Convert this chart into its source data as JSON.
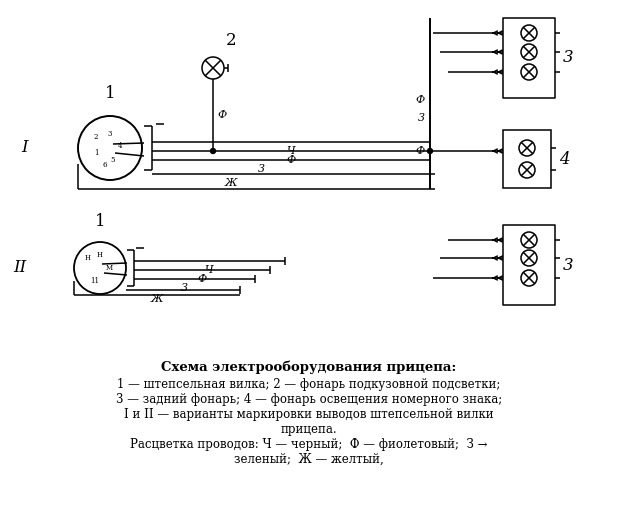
{
  "title": "Схема электрооборудования прицепа:",
  "legend_lines": [
    "1 — штепсельная вилка; 2 — фонарь подкузовной подсветки;",
    "3 — задний фонарь; 4 — фонарь освещения номерного знака;",
    "I и II — варианты маркировки выводов штепсельной вилки",
    "прицепа.",
    "Расцветка проводов: Ч — черный;  Ф — фиолетовый;  З →",
    "зеленый;  Ж — желтый,"
  ],
  "bg_color": "#ffffff",
  "lc": "#000000"
}
